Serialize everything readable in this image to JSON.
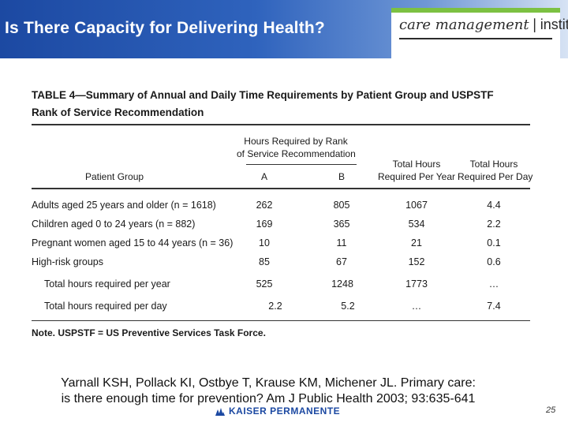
{
  "header": {
    "title": "Is There Capacity for Delivering Health?",
    "logo": {
      "left": "care management",
      "right": "institute"
    }
  },
  "table": {
    "title_line1": "TABLE 4—Summary of Annual and Daily Time Requirements by Patient Group and USPSTF",
    "title_line2": "Rank of Service Recommendation",
    "header_group": [
      "Hours Required by Rank",
      "of Service Recommendation"
    ],
    "columns": {
      "group": "Patient Group",
      "a": "A",
      "b": "B",
      "year": [
        "Total Hours",
        "Required Per Year"
      ],
      "day": [
        "Total Hours",
        "Required Per Day"
      ]
    },
    "rows": [
      {
        "group": "Adults aged 25 years and older (n = 1618)",
        "a": "262",
        "b": "805",
        "year": "1067",
        "day": "4.4"
      },
      {
        "group": "Children aged 0 to 24 years (n = 882)",
        "a": "169",
        "b": "365",
        "year": "534",
        "day": "2.2"
      },
      {
        "group": "Pregnant women aged 15 to 44 years (n = 36)",
        "a": "10",
        "b": "11",
        "year": "21",
        "day": "0.1"
      },
      {
        "group": "High-risk groups",
        "a": "85",
        "b": "67",
        "year": "152",
        "day": "0.6"
      }
    ],
    "totals": [
      {
        "label": "Total hours required per year",
        "a": "525",
        "b": "1248",
        "year": "1773",
        "day": "…"
      },
      {
        "label": "Total hours required per day",
        "a": "2.2",
        "b": "5.2",
        "year": "…",
        "day": "7.4"
      }
    ],
    "note": "Note. USPSTF = US Preventive Services Task Force."
  },
  "citation": {
    "line1": "Yarnall KSH, Pollack KI, Ostbye T, Krause KM, Michener JL. Primary care:",
    "line2": "is there enough time for prevention? Am J Public Health 2003; 93:635-641"
  },
  "footer": {
    "brand": "KAISER PERMANENTE",
    "page": "25"
  },
  "colors": {
    "header_blue": "#1c49a2",
    "logo_green": "#7cc142"
  }
}
